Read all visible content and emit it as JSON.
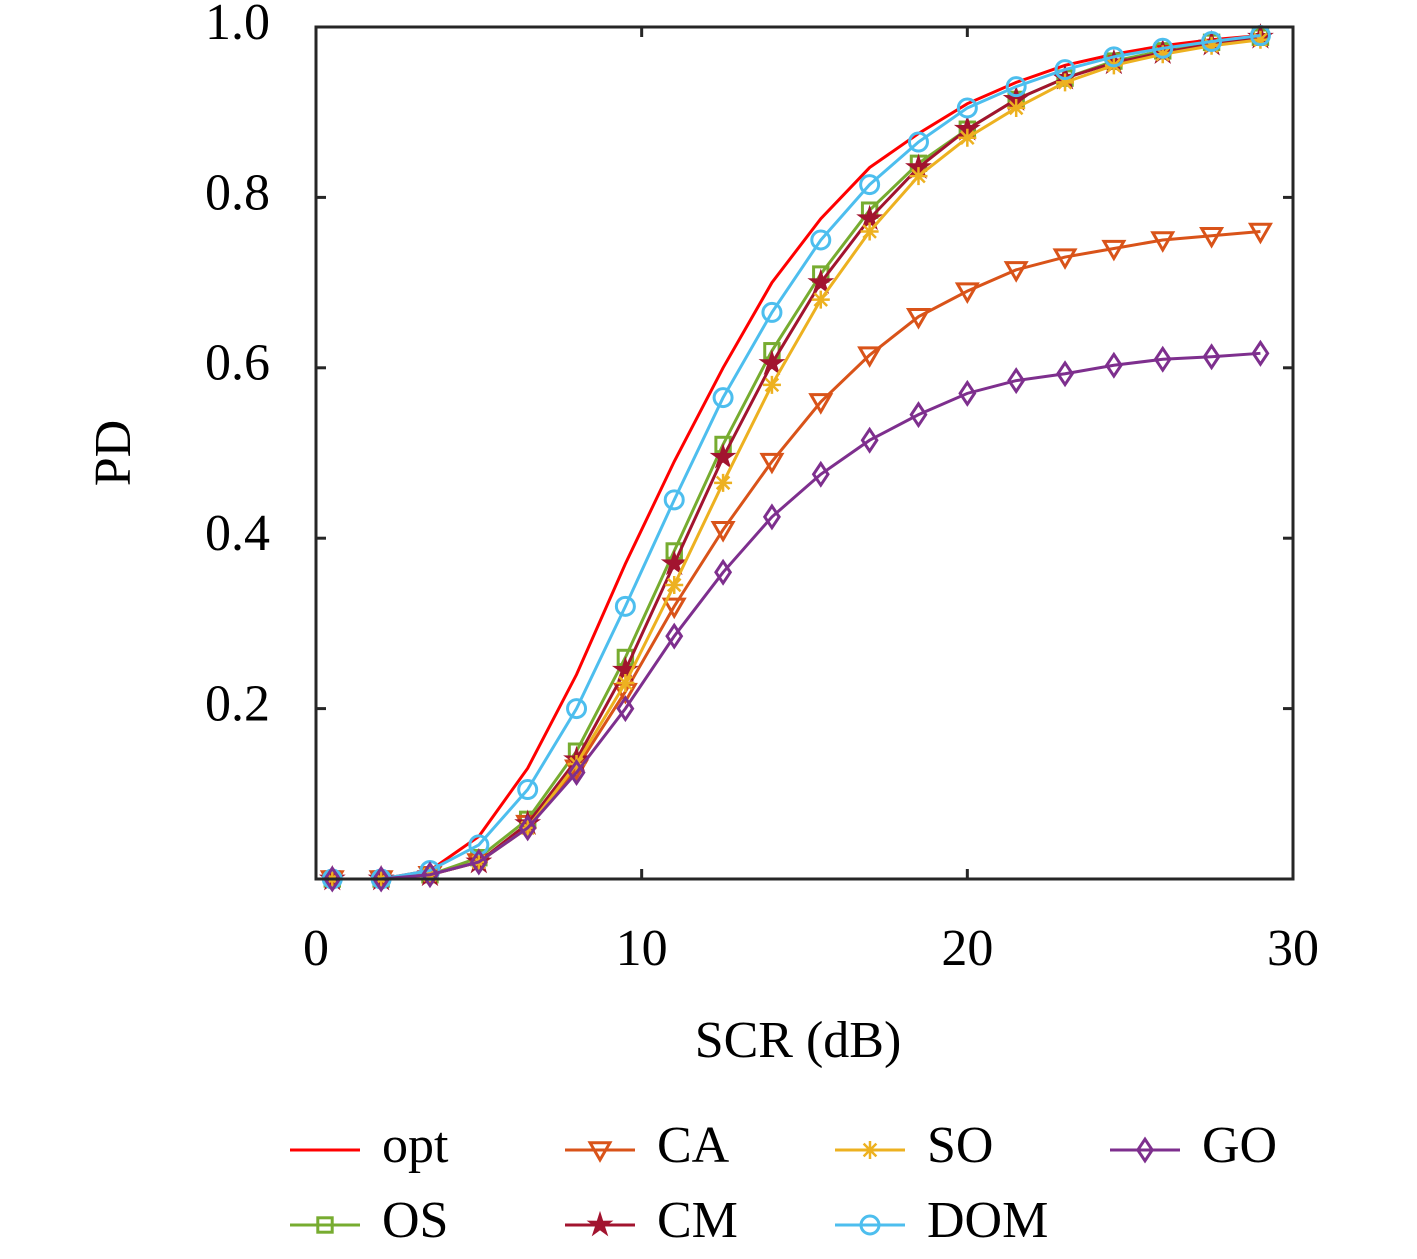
{
  "chart_data": {
    "type": "line",
    "xlabel": "SCR (dB)",
    "ylabel": "PD",
    "x": [
      0.5,
      2,
      3.5,
      5,
      6.5,
      8,
      9.5,
      11,
      12.5,
      14,
      15.5,
      17,
      18.5,
      20,
      21.5,
      23,
      24.5,
      26,
      27.5,
      29
    ],
    "xlim": [
      0,
      30
    ],
    "xticks": [
      0,
      10,
      20,
      30
    ],
    "ylim": [
      0,
      1
    ],
    "yticks": [
      0.2,
      0.4,
      0.6,
      0.8,
      {
        "value": 1,
        "label": "1.0"
      }
    ],
    "legend": "bottom",
    "series": [
      {
        "name": "opt",
        "color": "#ff0000",
        "marker": "none",
        "values": [
          0,
          0,
          0.01,
          0.05,
          0.13,
          0.24,
          0.37,
          0.49,
          0.6,
          0.7,
          0.775,
          0.835,
          0.875,
          0.91,
          0.935,
          0.955,
          0.968,
          0.978,
          0.985,
          0.99
        ]
      },
      {
        "name": "OS",
        "color": "#77ac30",
        "marker": "square",
        "values": [
          0,
          0,
          0.005,
          0.025,
          0.07,
          0.15,
          0.26,
          0.385,
          0.51,
          0.62,
          0.71,
          0.785,
          0.84,
          0.88,
          0.915,
          0.94,
          0.96,
          0.972,
          0.982,
          0.988
        ]
      },
      {
        "name": "CA",
        "color": "#d95319",
        "marker": "triangle-down",
        "values": [
          0,
          0,
          0.005,
          0.02,
          0.065,
          0.13,
          0.22,
          0.32,
          0.41,
          0.49,
          0.56,
          0.615,
          0.66,
          0.69,
          0.715,
          0.73,
          0.74,
          0.75,
          0.755,
          0.76
        ]
      },
      {
        "name": "CM",
        "color": "#a2142f",
        "marker": "star",
        "values": [
          0,
          0,
          0.005,
          0.02,
          0.065,
          0.14,
          0.245,
          0.37,
          0.495,
          0.605,
          0.7,
          0.775,
          0.835,
          0.88,
          0.915,
          0.94,
          0.958,
          0.97,
          0.98,
          0.988
        ]
      },
      {
        "name": "SO",
        "color": "#edb120",
        "marker": "asterisk",
        "values": [
          0,
          0,
          0.005,
          0.02,
          0.06,
          0.135,
          0.23,
          0.345,
          0.465,
          0.58,
          0.68,
          0.76,
          0.825,
          0.87,
          0.905,
          0.935,
          0.955,
          0.968,
          0.978,
          0.985
        ]
      },
      {
        "name": "DOM",
        "color": "#4dbeee",
        "marker": "circle",
        "values": [
          0,
          0,
          0.01,
          0.04,
          0.105,
          0.2,
          0.32,
          0.445,
          0.565,
          0.665,
          0.75,
          0.815,
          0.865,
          0.905,
          0.93,
          0.95,
          0.965,
          0.975,
          0.983,
          0.99
        ]
      },
      {
        "name": "GO",
        "color": "#7e2f8e",
        "marker": "diamond",
        "values": [
          0,
          0,
          0.005,
          0.02,
          0.06,
          0.125,
          0.2,
          0.285,
          0.36,
          0.425,
          0.475,
          0.515,
          0.545,
          0.57,
          0.585,
          0.593,
          0.603,
          0.61,
          0.613,
          0.617
        ]
      }
    ]
  }
}
